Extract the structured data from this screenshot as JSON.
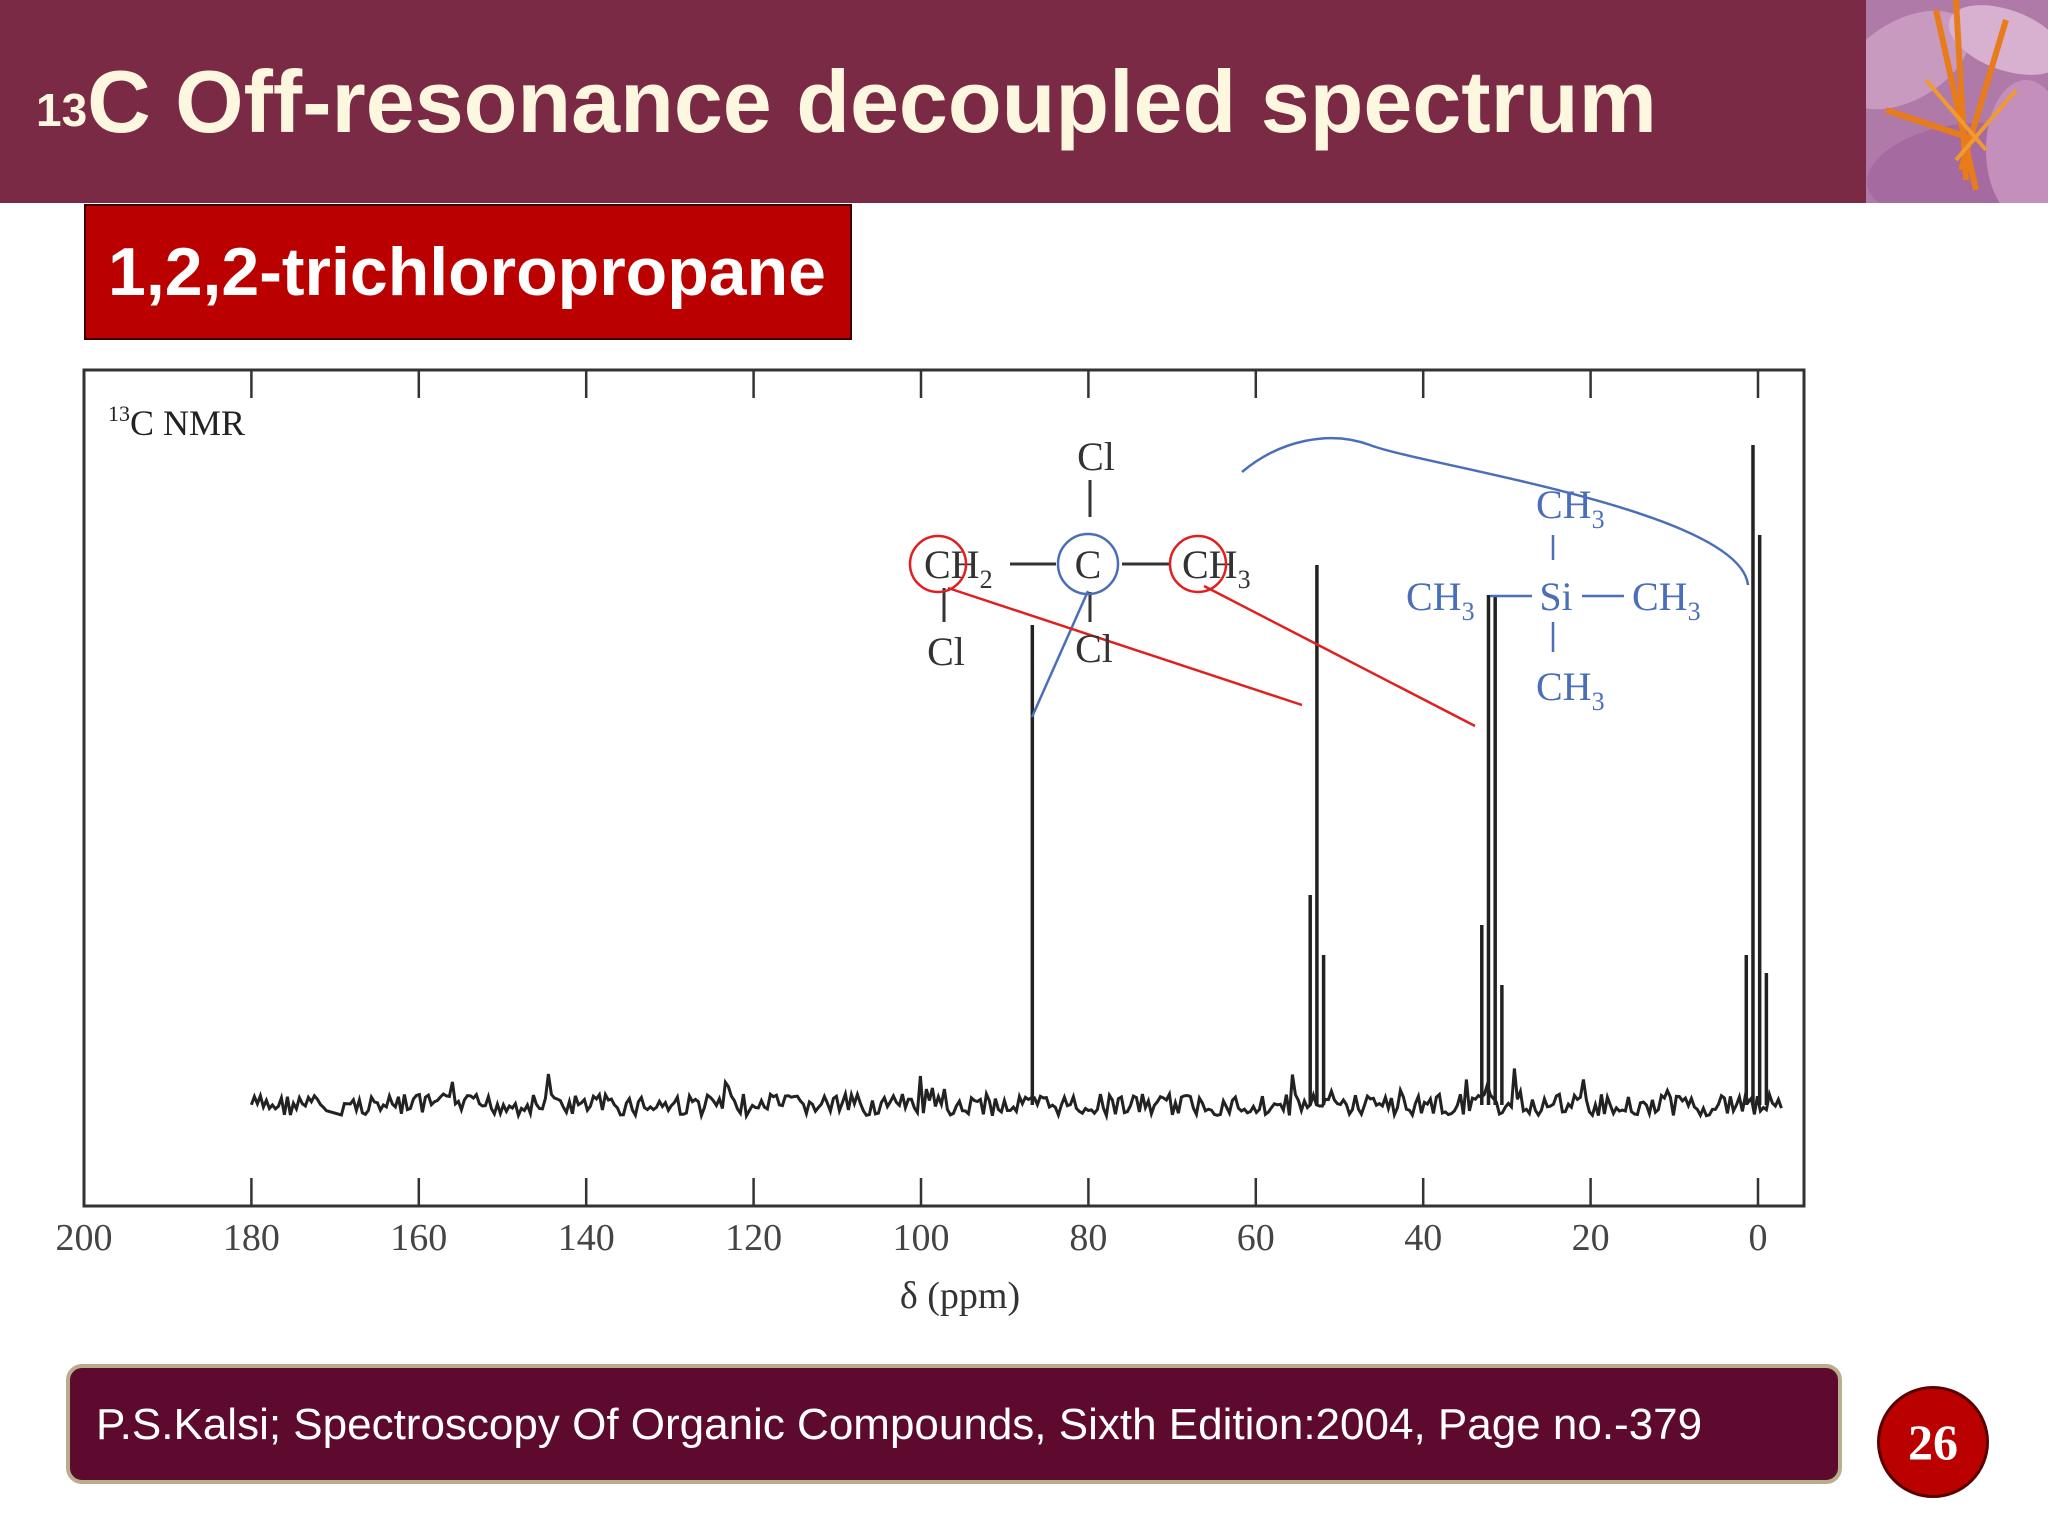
{
  "slide": {
    "title_sup": "13",
    "title_main": "C Off-resonance decoupled spectrum",
    "subtitle": "1,2,2-trichloropropane",
    "footer": "P.S.Kalsi; Spectroscopy Of Organic Compounds, Sixth Edition:2004, Page no.-379",
    "page_number": "26",
    "colors": {
      "header": "#7a2a44",
      "subtitle_box": "#bb0000",
      "footer_box": "#5e0a2e",
      "annotation_red": "#e02020",
      "annotation_blue": "#4a6fb8"
    }
  },
  "chart_data": {
    "type": "line",
    "title_sup": "13",
    "title": "C NMR",
    "xlabel": "δ (ppm)",
    "ylabel": "",
    "xlim": [
      200,
      -5
    ],
    "x_reversed": true,
    "grid": false,
    "x_ticks": [
      200,
      180,
      160,
      140,
      120,
      100,
      80,
      60,
      40,
      20,
      0
    ],
    "x_tick_labels": [
      "200",
      "180",
      "160",
      "140",
      "120",
      "100",
      "80",
      "60",
      "40",
      "20",
      "0"
    ],
    "baseline_noise": true,
    "peaks": [
      {
        "ppm": 86.7,
        "height": 0.8,
        "multiplicity": "singlet",
        "assignment": "C"
      },
      {
        "ppm": 53.5,
        "height": 0.35,
        "multiplicity": "triplet",
        "assignment": "CH2"
      },
      {
        "ppm": 52.7,
        "height": 0.9,
        "multiplicity": "triplet",
        "assignment": "CH2"
      },
      {
        "ppm": 51.9,
        "height": 0.25,
        "multiplicity": "triplet",
        "assignment": "CH2"
      },
      {
        "ppm": 33.0,
        "height": 0.3,
        "multiplicity": "quartet",
        "assignment": "CH3"
      },
      {
        "ppm": 32.2,
        "height": 0.85,
        "multiplicity": "quartet",
        "assignment": "CH3"
      },
      {
        "ppm": 31.4,
        "height": 0.85,
        "multiplicity": "quartet",
        "assignment": "CH3"
      },
      {
        "ppm": 30.6,
        "height": 0.2,
        "multiplicity": "quartet",
        "assignment": "CH3"
      },
      {
        "ppm": 1.4,
        "height": 0.25,
        "multiplicity": "quartet",
        "assignment": "TMS"
      },
      {
        "ppm": 0.6,
        "height": 1.1,
        "multiplicity": "quartet",
        "assignment": "TMS"
      },
      {
        "ppm": -0.2,
        "height": 0.95,
        "multiplicity": "quartet",
        "assignment": "TMS"
      },
      {
        "ppm": -1.0,
        "height": 0.22,
        "multiplicity": "quartet",
        "assignment": "TMS"
      }
    ],
    "annotations": {
      "structure": {
        "cl_top": "Cl",
        "ch2": "CH",
        "ch2_sub": "2",
        "c": "C",
        "ch3": "CH",
        "ch3_sub": "3",
        "cl_left": "Cl",
        "cl_bottom": "Cl"
      },
      "tms": {
        "ch3_top": "CH",
        "ch3_top_sub": "3",
        "ch3_left": "CH",
        "ch3_left_sub": "3",
        "si": "Si",
        "ch3_right": "CH",
        "ch3_right_sub": "3",
        "ch3_bottom": "CH",
        "ch3_bottom_sub": "3"
      }
    }
  }
}
